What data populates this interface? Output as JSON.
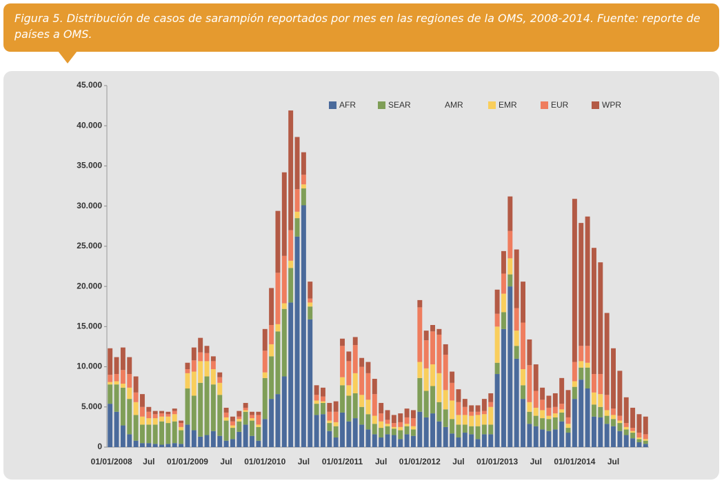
{
  "chart_data": {
    "type": "stacked_bar",
    "title": "Figura 5. Distribución de casos de sarampión reportados por mes en las regiones de la OMS, 2008-2014. Fuente: reporte de países a OMS.",
    "categories": [
      "01/01/2008",
      null,
      null,
      null,
      null,
      null,
      "Jul",
      null,
      null,
      null,
      null,
      null,
      "01/01/2009",
      null,
      null,
      null,
      null,
      null,
      "Jul",
      null,
      null,
      null,
      null,
      null,
      "01/01/2010",
      null,
      null,
      null,
      null,
      null,
      "Jul",
      null,
      null,
      null,
      null,
      null,
      "01/01/2011",
      null,
      null,
      null,
      null,
      null,
      "Jul",
      null,
      null,
      null,
      null,
      null,
      "01/01/2012",
      null,
      null,
      null,
      null,
      null,
      "Jul",
      null,
      null,
      null,
      null,
      null,
      "01/01/2013",
      null,
      null,
      null,
      null,
      null,
      "Jul",
      null,
      null,
      null,
      null,
      null,
      "01/01/2014",
      null,
      null,
      null,
      null,
      null,
      "Jul",
      null,
      null,
      null,
      null,
      null
    ],
    "series": [
      {
        "name": "AFR",
        "color": "#4a6a9b",
        "values": [
          5400,
          4400,
          2700,
          1600,
          800,
          500,
          500,
          400,
          300,
          400,
          500,
          400,
          2800,
          2100,
          1300,
          1500,
          2000,
          1400,
          800,
          1000,
          1900,
          2800,
          1400,
          800,
          3500,
          6000,
          6600,
          8800,
          18000,
          26200,
          30100,
          15900,
          4000,
          4100,
          2000,
          1200,
          4300,
          3200,
          3600,
          2800,
          2200,
          1600,
          1200,
          1600,
          1500,
          1000,
          1600,
          1400,
          4400,
          3700,
          4200,
          3200,
          2500,
          1700,
          1200,
          1800,
          1600,
          1000,
          1600,
          1600,
          9100,
          14700,
          20000,
          11000,
          6000,
          2900,
          2600,
          2200,
          2000,
          2200,
          3200,
          1800,
          6000,
          8400,
          7300,
          3800,
          3700,
          2900,
          2600,
          2000,
          1500,
          1100,
          600,
          400
        ]
      },
      {
        "name": "SEAR",
        "color": "#7f9e57",
        "values": [
          2400,
          3400,
          4700,
          4400,
          3200,
          2300,
          2300,
          2400,
          2900,
          2600,
          2700,
          1700,
          4500,
          4300,
          6700,
          7300,
          5800,
          5100,
          2500,
          1400,
          1300,
          1600,
          1900,
          1700,
          5100,
          5300,
          7800,
          8400,
          4300,
          2300,
          2100,
          1600,
          1400,
          1400,
          1000,
          1400,
          3400,
          3200,
          3100,
          2200,
          1900,
          1300,
          1200,
          1000,
          800,
          1100,
          1000,
          800,
          4200,
          3300,
          3400,
          2400,
          2200,
          1800,
          1600,
          1000,
          1000,
          1600,
          1200,
          1200,
          1400,
          2100,
          1500,
          1600,
          1700,
          1500,
          1300,
          1400,
          1500,
          1500,
          1100,
          600,
          1500,
          1500,
          2600,
          1500,
          1300,
          1000,
          900,
          1000,
          700,
          700,
          400,
          400
        ]
      },
      {
        "name": "AMR",
        "color": "#e4e4e4",
        "values": [
          0,
          0,
          0,
          0,
          0,
          0,
          0,
          0,
          0,
          0,
          0,
          0,
          0,
          0,
          0,
          0,
          0,
          0,
          0,
          0,
          0,
          0,
          0,
          0,
          0,
          0,
          0,
          0,
          0,
          0,
          0,
          0,
          0,
          0,
          0,
          0,
          0,
          0,
          0,
          0,
          0,
          0,
          0,
          0,
          0,
          0,
          0,
          0,
          0,
          0,
          0,
          0,
          0,
          0,
          0,
          0,
          0,
          0,
          0,
          0,
          0,
          0,
          0,
          0,
          0,
          0,
          0,
          0,
          0,
          0,
          0,
          0,
          0,
          0,
          0,
          0,
          0,
          0,
          0,
          0,
          0,
          0,
          0,
          0
        ]
      },
      {
        "name": "EMR",
        "color": "#f9ce5c",
        "values": [
          300,
          400,
          500,
          1400,
          1600,
          1000,
          800,
          800,
          600,
          800,
          900,
          400,
          1900,
          3000,
          2700,
          1900,
          1900,
          1500,
          400,
          300,
          300,
          200,
          300,
          300,
          700,
          1500,
          900,
          700,
          900,
          800,
          500,
          500,
          400,
          200,
          300,
          500,
          1000,
          1300,
          2500,
          1500,
          1800,
          1000,
          800,
          300,
          200,
          400,
          300,
          400,
          2000,
          2800,
          2700,
          3600,
          2400,
          2300,
          1200,
          1200,
          1300,
          1400,
          1300,
          2200,
          4500,
          2300,
          2000,
          1900,
          2000,
          1200,
          1000,
          1000,
          400,
          500,
          400,
          500,
          700,
          800,
          600,
          1500,
          1600,
          700,
          500,
          300,
          300,
          200,
          200,
          200
        ]
      },
      {
        "name": "EUR",
        "color": "#ef7d5e",
        "values": [
          900,
          900,
          1700,
          1700,
          1200,
          1200,
          800,
          500,
          400,
          300,
          400,
          500,
          500,
          1400,
          1100,
          1000,
          1000,
          700,
          600,
          500,
          300,
          300,
          400,
          1200,
          2700,
          2400,
          6400,
          5900,
          3800,
          2800,
          1200,
          500,
          700,
          600,
          1100,
          1300,
          3900,
          3000,
          3500,
          3500,
          3300,
          2700,
          1000,
          500,
          500,
          600,
          800,
          1000,
          6800,
          3500,
          4100,
          4800,
          4400,
          2200,
          1600,
          1000,
          500,
          400,
          400,
          600,
          1600,
          2500,
          3400,
          2800,
          5800,
          4600,
          2100,
          1300,
          1000,
          800,
          700,
          800,
          2400,
          1900,
          2100,
          2300,
          2500,
          1900,
          800,
          600,
          500,
          400,
          600,
          600
        ]
      },
      {
        "name": "WPR",
        "color": "#b35a45",
        "values": [
          3300,
          2100,
          2800,
          2100,
          2000,
          1600,
          600,
          400,
          300,
          300,
          300,
          300,
          800,
          1600,
          1800,
          900,
          600,
          600,
          600,
          600,
          700,
          600,
          400,
          400,
          2700,
          4600,
          7700,
          10400,
          14900,
          6500,
          2800,
          2100,
          1200,
          1100,
          1100,
          1300,
          900,
          1200,
          1000,
          1100,
          1400,
          1900,
          1300,
          1200,
          1000,
          1100,
          1100,
          1000,
          900,
          1200,
          800,
          700,
          1300,
          1400,
          1600,
          1000,
          800,
          800,
          1500,
          1100,
          3000,
          2800,
          4300,
          7300,
          5100,
          3200,
          3300,
          1500,
          1500,
          1700,
          3200,
          3400,
          20300,
          15300,
          16100,
          15700,
          13900,
          10200,
          7500,
          5600,
          3200,
          2500,
          2300,
          2200
        ]
      }
    ],
    "ylim": [
      0,
      45000
    ],
    "yticks": [
      0,
      {
        "value": 5000,
        "label": "5.000"
      },
      {
        "value": 10000,
        "label": "10.000"
      },
      {
        "value": 15000,
        "label": "15.000"
      },
      {
        "value": 20000,
        "label": "20.000"
      },
      {
        "value": 25000,
        "label": "25.000"
      },
      {
        "value": 30000,
        "label": "30.000"
      },
      {
        "value": 35000,
        "label": "35.000"
      },
      {
        "value": 40000,
        "label": "40.000"
      },
      {
        "value": 45000,
        "label": "45.000"
      }
    ],
    "grid": false,
    "legend": "top"
  }
}
